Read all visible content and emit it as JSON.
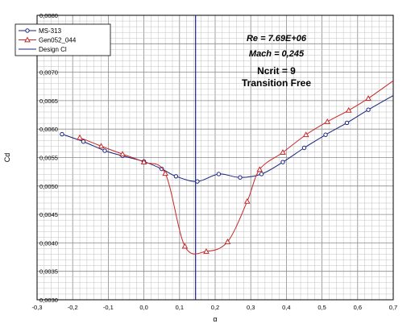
{
  "chart_data": {
    "type": "line",
    "xlabel": "α",
    "ylabel": "Cd",
    "xlim": [
      -0.3,
      0.7
    ],
    "ylim": [
      0.003,
      0.008
    ],
    "x_ticks": [
      "-0,3",
      "-0,2",
      "-0,1",
      "0,0",
      "0,1",
      "0,2",
      "0,3",
      "0,4",
      "0,5",
      "0,6",
      "0,7"
    ],
    "y_ticks": [
      "0,0030",
      "0,0035",
      "0,0040",
      "0,0045",
      "0,0050",
      "0,0055",
      "0,0060",
      "0,0065",
      "0,0070",
      "0,0075",
      "0,0080"
    ],
    "grid": true,
    "legend_position": "top-left",
    "series": [
      {
        "name": "MS-313",
        "color": "#1a237e",
        "marker": "circle",
        "x": [
          -0.23,
          -0.17,
          -0.11,
          -0.06,
          0.0,
          0.05,
          0.09,
          0.15,
          0.21,
          0.27,
          0.33,
          0.39,
          0.45,
          0.51,
          0.57,
          0.63,
          0.7
        ],
        "y": [
          0.00591,
          0.00578,
          0.00562,
          0.00553,
          0.00543,
          0.0053,
          0.00517,
          0.00508,
          0.00521,
          0.00515,
          0.00521,
          0.00542,
          0.00567,
          0.0059,
          0.00611,
          0.00634,
          0.00659
        ]
      },
      {
        "name": "Gen052_044",
        "color": "#c62828",
        "marker": "triangle",
        "x": [
          -0.18,
          -0.12,
          -0.06,
          0.0,
          0.06,
          0.115,
          0.175,
          0.235,
          0.29,
          0.325,
          0.39,
          0.455,
          0.515,
          0.575,
          0.63,
          0.7
        ],
        "y": [
          0.00585,
          0.0057,
          0.00556,
          0.00542,
          0.00522,
          0.00394,
          0.00385,
          0.00402,
          0.00473,
          0.00529,
          0.00559,
          0.0059,
          0.00613,
          0.00633,
          0.00654,
          0.00685
        ]
      }
    ],
    "design_cl": {
      "name": "Design Cl",
      "color": "#1a237e",
      "x": 0.145
    },
    "annotations": [
      {
        "text": "Re = 7.69E+06",
        "style": "italic"
      },
      {
        "text": "Mach = 0,245",
        "style": "italic"
      },
      {
        "text": "Ncrit = 9",
        "style": "bold"
      },
      {
        "text": "Transition Free",
        "style": "bold"
      }
    ]
  }
}
